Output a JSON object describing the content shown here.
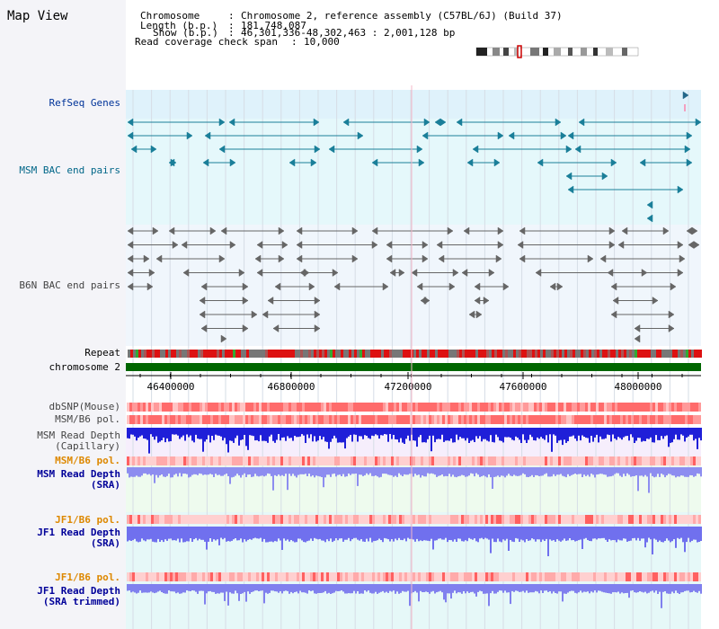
{
  "panel_title": "Map View",
  "info": {
    "chromosome_label": "Chromosome",
    "chromosome_value": "Chromosome 2, reference assembly (C57BL/6J) (Build 37)",
    "length_label": "Length (b.p.)",
    "length_value": "181,748,087",
    "show_label": "Show (b.p.)",
    "show_value": "46,301,336-48,302,463 : 2,001,128 bp",
    "coverage_label": "Read coverage check span",
    "coverage_value": "10,000"
  },
  "tracks": {
    "refseq": "RefSeq Genes",
    "msm_bac": "MSM BAC end pairs",
    "b6n_bac": "B6N BAC end pairs",
    "repeat": "Repeat",
    "chromosome": "chromosome 2",
    "dbsnp": "dbSNP(Mouse)",
    "msm_b6_pol": "MSM/B6 pol.",
    "msm_depth_cap_1": "MSM Read Depth",
    "msm_depth_cap_2": "(Capillary)",
    "msm_b6_pol_2": "MSM/B6 pol.",
    "msm_depth_sra_1": "MSM Read Depth",
    "msm_depth_sra_2": "(SRA)",
    "jf1_b6_pol": "JF1/B6 pol.",
    "jf1_depth_sra_1": "JF1 Read Depth",
    "jf1_depth_sra_2": "(SRA)",
    "jf1_b6_pol_2": "JF1/B6 pol.",
    "jf1_depth_trim_1": "JF1 Read Depth",
    "jf1_depth_trim_2": "(SRA trimmed)"
  },
  "axis": {
    "ticks": [
      "46400000",
      "46800000",
      "47200000",
      "47600000",
      "48000000"
    ]
  },
  "colors": {
    "refseq_bg": "#dff2fb",
    "msm_bg": "#e5f8fb",
    "b6n_bg": "#f0f6fc",
    "msm_sra_bg": "#eefbee",
    "jf1_bg": "#e6f8f8",
    "chrom_band": "#006600",
    "msm_label": "#006688",
    "refseq_label": "#003399",
    "depth_label": "#000099",
    "pol_label": "#dd8800",
    "gray_label": "#444444"
  }
}
